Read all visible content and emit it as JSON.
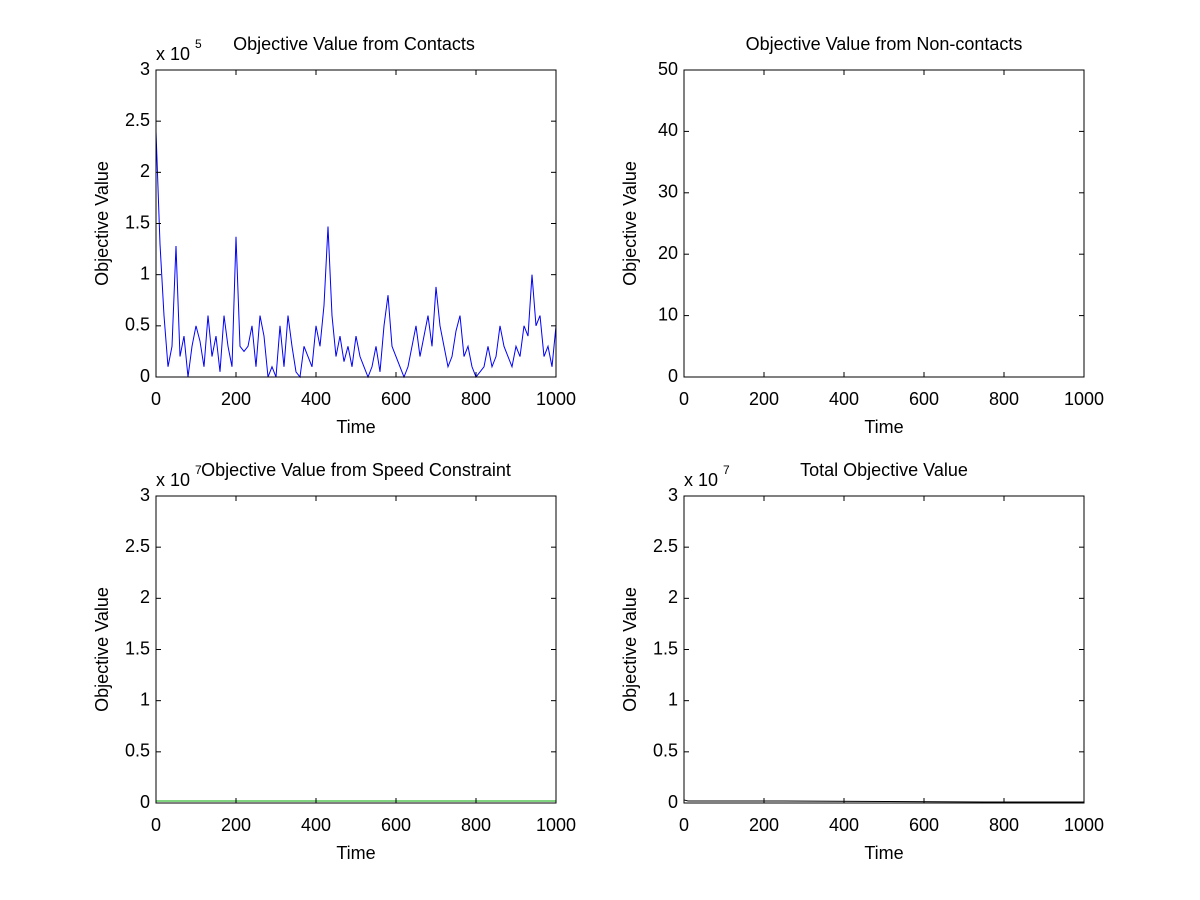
{
  "chart_data": [
    {
      "type": "line",
      "title": "Objective Value from Contacts",
      "xlabel": "Time",
      "ylabel": "Objective Value",
      "y_multiplier": {
        "base": "x 10",
        "exponent": "5"
      },
      "xlim": [
        0,
        1000
      ],
      "xticks": [
        0,
        200,
        400,
        600,
        800,
        1000
      ],
      "ylim": [
        0,
        3
      ],
      "yticks": [
        0,
        0.5,
        1,
        1.5,
        2,
        2.5,
        3
      ],
      "x": [
        0,
        10,
        20,
        30,
        40,
        50,
        60,
        70,
        80,
        90,
        100,
        110,
        120,
        130,
        140,
        150,
        160,
        170,
        180,
        190,
        200,
        210,
        220,
        230,
        240,
        250,
        260,
        270,
        280,
        290,
        300,
        310,
        320,
        330,
        340,
        350,
        360,
        370,
        380,
        390,
        400,
        410,
        420,
        430,
        440,
        450,
        460,
        470,
        480,
        490,
        500,
        510,
        520,
        530,
        540,
        550,
        560,
        570,
        580,
        590,
        600,
        610,
        620,
        630,
        640,
        650,
        660,
        670,
        680,
        690,
        700,
        710,
        720,
        730,
        740,
        750,
        760,
        770,
        780,
        790,
        800,
        810,
        820,
        830,
        840,
        850,
        860,
        870,
        880,
        890,
        900,
        910,
        920,
        930,
        940,
        950,
        960,
        970,
        980,
        990,
        1000
      ],
      "series": [
        {
          "color": "#0000ff",
          "values": [
            2.4,
            1.3,
            0.6,
            0.1,
            0.3,
            1.28,
            0.2,
            0.4,
            0,
            0.3,
            0.5,
            0.35,
            0.1,
            0.6,
            0.2,
            0.4,
            0.05,
            0.6,
            0.3,
            0.1,
            1.37,
            0.3,
            0.25,
            0.3,
            0.5,
            0.1,
            0.6,
            0.4,
            0,
            0.1,
            0,
            0.5,
            0.1,
            0.6,
            0.3,
            0.05,
            0,
            0.3,
            0.2,
            0.1,
            0.5,
            0.3,
            0.7,
            1.47,
            0.6,
            0.2,
            0.4,
            0.15,
            0.3,
            0.1,
            0.4,
            0.2,
            0.1,
            0,
            0.1,
            0.3,
            0.05,
            0.5,
            0.8,
            0.3,
            0.2,
            0.1,
            0,
            0.1,
            0.3,
            0.5,
            0.2,
            0.4,
            0.6,
            0.3,
            0.88,
            0.5,
            0.3,
            0.1,
            0.2,
            0.45,
            0.6,
            0.2,
            0.3,
            0.1,
            0,
            0.05,
            0.1,
            0.3,
            0.1,
            0.2,
            0.5,
            0.3,
            0.2,
            0.1,
            0.3,
            0.2,
            0.5,
            0.4,
            1.0,
            0.5,
            0.6,
            0.2,
            0.3,
            0.1,
            0.5
          ]
        }
      ]
    },
    {
      "type": "line",
      "title": "Objective Value from Non-contacts",
      "xlabel": "Time",
      "ylabel": "Objective Value",
      "xlim": [
        0,
        1000
      ],
      "xticks": [
        0,
        200,
        400,
        600,
        800,
        1000
      ],
      "ylim": [
        0,
        50
      ],
      "yticks": [
        0,
        10,
        20,
        30,
        40,
        50
      ],
      "x": [],
      "series": []
    },
    {
      "type": "line",
      "title": "Objective Value from Speed Constraint",
      "xlabel": "Time",
      "ylabel": "Objective Value",
      "y_multiplier": {
        "base": "x 10",
        "exponent": "7"
      },
      "xlim": [
        0,
        1000
      ],
      "xticks": [
        0,
        200,
        400,
        600,
        800,
        1000
      ],
      "ylim": [
        0,
        3
      ],
      "yticks": [
        0,
        0.5,
        1,
        1.5,
        2,
        2.5,
        3
      ],
      "x": [
        0,
        250,
        500,
        750,
        1000
      ],
      "series": [
        {
          "color": "#00aa00",
          "values": [
            0.02,
            0.02,
            0.02,
            0.02,
            0.02
          ]
        }
      ]
    },
    {
      "type": "line",
      "title": "Total Objective Value",
      "xlabel": "Time",
      "ylabel": "Objective Value",
      "y_multiplier": {
        "base": "x 10",
        "exponent": "7"
      },
      "xlim": [
        0,
        1000
      ],
      "xticks": [
        0,
        200,
        400,
        600,
        800,
        1000
      ],
      "ylim": [
        0,
        3
      ],
      "yticks": [
        0,
        0.5,
        1,
        1.5,
        2,
        2.5,
        3
      ],
      "x": [
        0,
        10,
        250,
        500,
        750,
        1000
      ],
      "series": [
        {
          "color": "#000000",
          "values": [
            0.03,
            0.02,
            0.02,
            0.015,
            0.01,
            0.01
          ]
        }
      ]
    }
  ]
}
